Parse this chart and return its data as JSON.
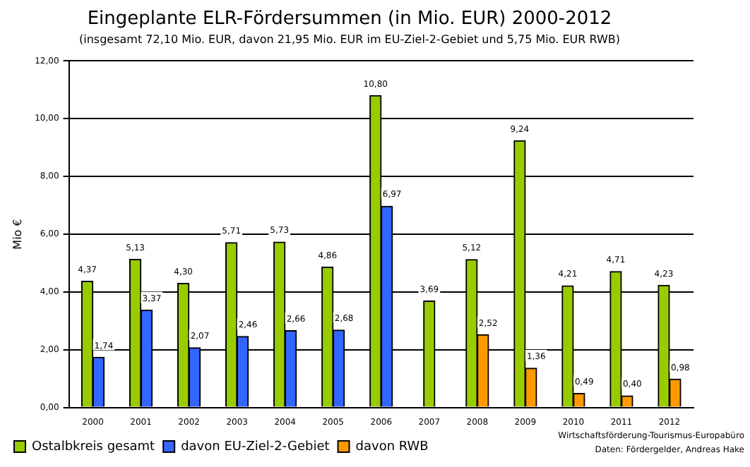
{
  "chart_data": {
    "type": "bar",
    "title": "Eingeplante ELR-Fördersummen (in Mio. EUR) 2000-2012",
    "subtitle": "(insgesamt 72,10 Mio. EUR, davon 21,95 Mio. EUR im EU-Ziel-2-Gebiet und 5,75 Mio. EUR RWB)",
    "ylabel": "Mio €",
    "categories": [
      "2000",
      "2001",
      "2002",
      "2003",
      "2004",
      "2005",
      "2006",
      "2007",
      "2008",
      "2009",
      "2010",
      "2011",
      "2012"
    ],
    "series": [
      {
        "name": "Ostalbkreis gesamt",
        "color": "#99cc00",
        "values": [
          4.37,
          5.13,
          4.3,
          5.71,
          5.73,
          4.86,
          10.8,
          3.69,
          5.12,
          9.24,
          4.21,
          4.71,
          4.23
        ],
        "value_labels": [
          "4,37",
          "5,13",
          "4,30",
          "5,71",
          "5,73",
          "4,86",
          "10,80",
          "3,69",
          "5,12",
          "9,24",
          "4,21",
          "4,71",
          "4,23"
        ]
      },
      {
        "name": "davon EU-Ziel-2-Gebiet",
        "color": "#3366ff",
        "values": [
          1.74,
          3.37,
          2.07,
          2.46,
          2.66,
          2.68,
          6.97,
          null,
          null,
          null,
          null,
          null,
          null
        ],
        "value_labels": [
          "1,74",
          "3,37",
          "2,07",
          "2,46",
          "2,66",
          "2,68",
          "6,97",
          null,
          null,
          null,
          null,
          null,
          null
        ]
      },
      {
        "name": "davon RWB",
        "color": "#ff9900",
        "values": [
          null,
          null,
          null,
          null,
          null,
          null,
          null,
          null,
          2.52,
          1.36,
          0.49,
          0.4,
          0.98
        ],
        "value_labels": [
          null,
          null,
          null,
          null,
          null,
          null,
          null,
          null,
          "2,52",
          "1,36",
          "0,49",
          "0,40",
          "0,98"
        ]
      }
    ],
    "ylim": [
      0,
      12
    ],
    "yticks": [
      {
        "value": 0,
        "label": "0,00"
      },
      {
        "value": 2,
        "label": "2,00"
      },
      {
        "value": 4,
        "label": "4,00"
      },
      {
        "value": 6,
        "label": "6,00"
      },
      {
        "value": 8,
        "label": "8,00"
      },
      {
        "value": 10,
        "label": "10,00"
      },
      {
        "value": 12,
        "label": "12,00"
      }
    ],
    "grid": "y",
    "legend": "bottom left",
    "annotations": [
      "Wirtschaftsförderung-Tourismus-Europabüro",
      "Daten: Fördergelder, Andreas Hake"
    ]
  }
}
